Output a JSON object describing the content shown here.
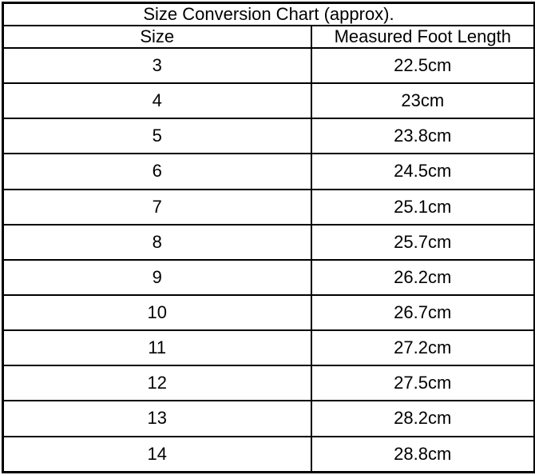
{
  "accent_colors": {
    "border": "#000000",
    "background": "#ffffff",
    "text": "#000000"
  },
  "table": {
    "title": "Size Conversion Chart (approx).",
    "headers": {
      "size": "Size",
      "length": "Measured Foot Length"
    },
    "rows": [
      {
        "size": "3",
        "length": "22.5cm"
      },
      {
        "size": "4",
        "length": "23cm"
      },
      {
        "size": "5",
        "length": "23.8cm"
      },
      {
        "size": "6",
        "length": "24.5cm"
      },
      {
        "size": "7",
        "length": "25.1cm"
      },
      {
        "size": "8",
        "length": "25.7cm"
      },
      {
        "size": "9",
        "length": "26.2cm"
      },
      {
        "size": "10",
        "length": "26.7cm"
      },
      {
        "size": "11",
        "length": "27.2cm"
      },
      {
        "size": "12",
        "length": "27.5cm"
      },
      {
        "size": "13",
        "length": "28.2cm"
      },
      {
        "size": "14",
        "length": "28.8cm"
      }
    ]
  },
  "chart_data": {
    "type": "table",
    "title": "Size Conversion Chart (approx).",
    "columns": [
      "Size",
      "Measured Foot Length"
    ],
    "categories": [
      3,
      4,
      5,
      6,
      7,
      8,
      9,
      10,
      11,
      12,
      13,
      14
    ],
    "values_cm": [
      22.5,
      23,
      23.8,
      24.5,
      25.1,
      25.7,
      26.2,
      26.7,
      27.2,
      27.5,
      28.2,
      28.8
    ],
    "layout": {
      "grid": true,
      "legend": "none",
      "all_cells_centered": true
    }
  }
}
